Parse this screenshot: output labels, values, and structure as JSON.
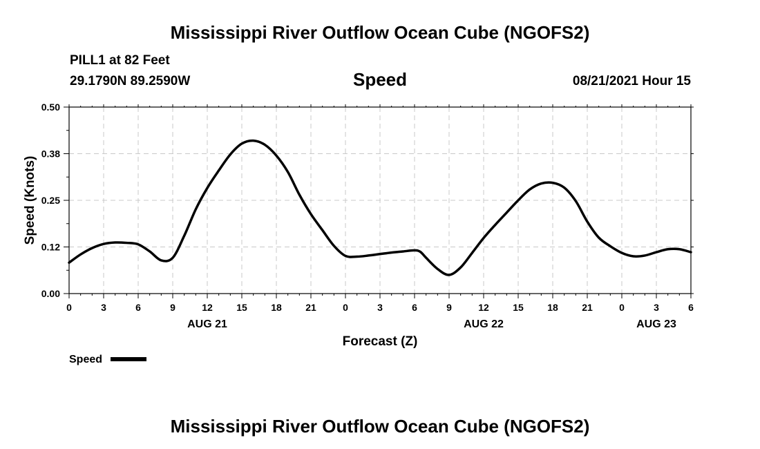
{
  "header": {
    "title": "Mississippi River Outflow Ocean Cube (NGOFS2)",
    "station": "PILL1 at 82 Feet",
    "coords": "29.1790N  89.2590W",
    "subtitle": "Speed",
    "datetime": "08/21/2021 Hour 15"
  },
  "footer": {
    "title": "Mississippi River Outflow Ocean Cube (NGOFS2)"
  },
  "legend": {
    "label": "Speed"
  },
  "chart_data": {
    "type": "line",
    "title": "Speed",
    "xlabel": "Forecast (Z)",
    "ylabel": "Speed (Knots)",
    "xlim": [
      0,
      54
    ],
    "ylim": [
      0,
      0.5
    ],
    "grid": true,
    "x_ticks": [
      0,
      3,
      6,
      9,
      12,
      15,
      18,
      21,
      24,
      27,
      30,
      33,
      36,
      39,
      42,
      45,
      48,
      51,
      54
    ],
    "x_tick_labels": [
      "0",
      "3",
      "6",
      "9",
      "12",
      "15",
      "18",
      "21",
      "0",
      "3",
      "6",
      "9",
      "12",
      "15",
      "18",
      "21",
      "0",
      "3",
      "6"
    ],
    "y_ticks": [
      0,
      0.125,
      0.25,
      0.375,
      0.5
    ],
    "y_tick_labels": [
      "0.00",
      "0.12",
      "0.25",
      "0.38",
      "0.50"
    ],
    "date_labels": [
      {
        "x": 12,
        "label": "AUG 21"
      },
      {
        "x": 36,
        "label": "AUG 22"
      },
      {
        "x": 51,
        "label": "AUG 23"
      }
    ],
    "series": [
      {
        "name": "Speed",
        "color": "#000000",
        "x": [
          0,
          1,
          2,
          3,
          4,
          5,
          6,
          7,
          8,
          9,
          10,
          11,
          12,
          13,
          14,
          15,
          16,
          17,
          18,
          19,
          20,
          21,
          22,
          23,
          24,
          25,
          26,
          27,
          28,
          29,
          30,
          30.5,
          31,
          32,
          33,
          34,
          35,
          36,
          37,
          38,
          39,
          40,
          41,
          42,
          43,
          44,
          45,
          46,
          47,
          48,
          49,
          50,
          51,
          52,
          53,
          54
        ],
        "values": [
          0.083,
          0.105,
          0.122,
          0.133,
          0.137,
          0.136,
          0.132,
          0.113,
          0.089,
          0.096,
          0.155,
          0.226,
          0.283,
          0.33,
          0.373,
          0.402,
          0.41,
          0.399,
          0.37,
          0.326,
          0.265,
          0.213,
          0.17,
          0.128,
          0.101,
          0.099,
          0.102,
          0.106,
          0.11,
          0.113,
          0.116,
          0.112,
          0.096,
          0.066,
          0.05,
          0.07,
          0.109,
          0.149,
          0.184,
          0.217,
          0.25,
          0.279,
          0.295,
          0.297,
          0.284,
          0.248,
          0.193,
          0.15,
          0.127,
          0.109,
          0.1,
          0.102,
          0.111,
          0.119,
          0.119,
          0.111
        ]
      }
    ]
  }
}
